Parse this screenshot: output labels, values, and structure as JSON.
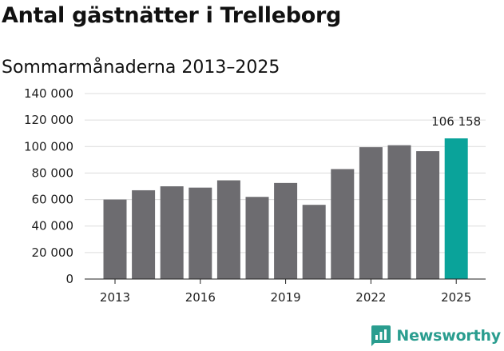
{
  "chart_data": {
    "type": "bar",
    "title": "Antal gästnätter i Trelleborg",
    "subtitle": "Sommarmånaderna 2013–2025",
    "categories": [
      "2013",
      "2014",
      "2015",
      "2016",
      "2017",
      "2018",
      "2019",
      "2020",
      "2021",
      "2022",
      "2023",
      "2024",
      "2025"
    ],
    "values": [
      60000,
      67000,
      70000,
      69000,
      74500,
      62000,
      72500,
      56000,
      83000,
      99500,
      101000,
      96500,
      106158
    ],
    "x_tick_labels": [
      "2013",
      "2016",
      "2019",
      "2022",
      "2025"
    ],
    "y_ticks": [
      0,
      20000,
      40000,
      60000,
      80000,
      100000,
      120000,
      140000
    ],
    "y_tick_labels": [
      "0",
      "20 000",
      "40 000",
      "60 000",
      "80 000",
      "100 000",
      "120 000",
      "140 000"
    ],
    "ylim": [
      0,
      140000
    ],
    "grid": true,
    "bar_color": "#6d6c70",
    "highlight_color": "#0aa39a",
    "highlight_index": 12,
    "annotation": "106 158",
    "xlabel": "",
    "ylabel": ""
  },
  "brand": {
    "name": "Newsworthy",
    "color": "#2a9d8f",
    "icon": "newsworthy-logo-icon"
  }
}
